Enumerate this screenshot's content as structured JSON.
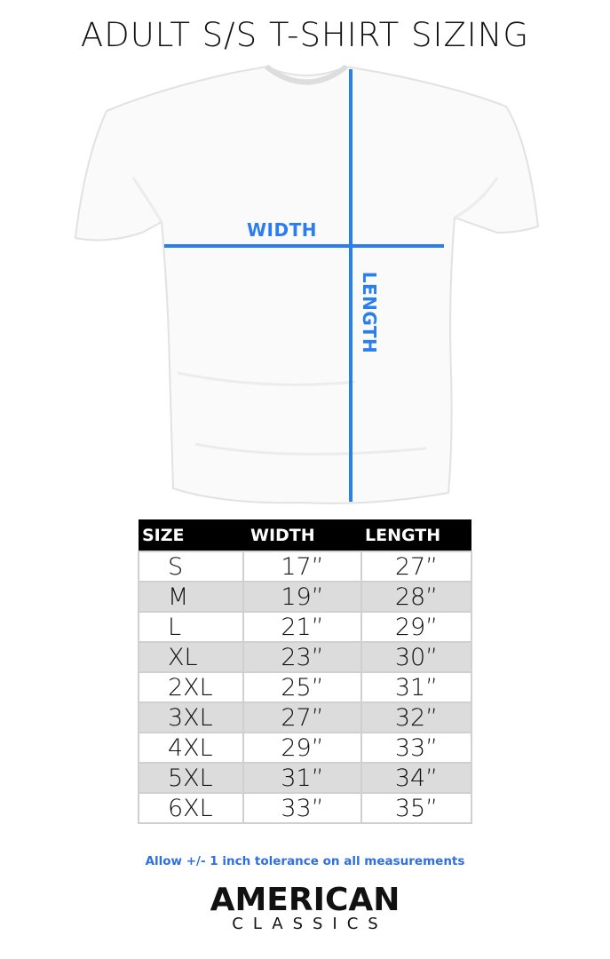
{
  "title": "ADULT S/S T-SHIRT SIZING",
  "diagram": {
    "width_label": "WIDTH",
    "length_label": "LENGTH",
    "accent_color": "#2a7ef0"
  },
  "table": {
    "headers": [
      "SIZE",
      "WIDTH",
      "LENGTH"
    ],
    "rows": [
      [
        "S",
        "17”",
        "27”"
      ],
      [
        "M",
        "19”",
        "28”"
      ],
      [
        "L",
        "21”",
        "29”"
      ],
      [
        "XL",
        "23”",
        "30”"
      ],
      [
        "2XL",
        "25”",
        "31”"
      ],
      [
        "3XL",
        "27”",
        "32”"
      ],
      [
        "4XL",
        "29”",
        "33”"
      ],
      [
        "5XL",
        "31”",
        "34”"
      ],
      [
        "6XL",
        "33”",
        "35”"
      ]
    ]
  },
  "note": "Allow +/- 1 inch tolerance on all measurements",
  "logo": {
    "line1": "AMERICAN",
    "line2": "CLASSICS"
  }
}
